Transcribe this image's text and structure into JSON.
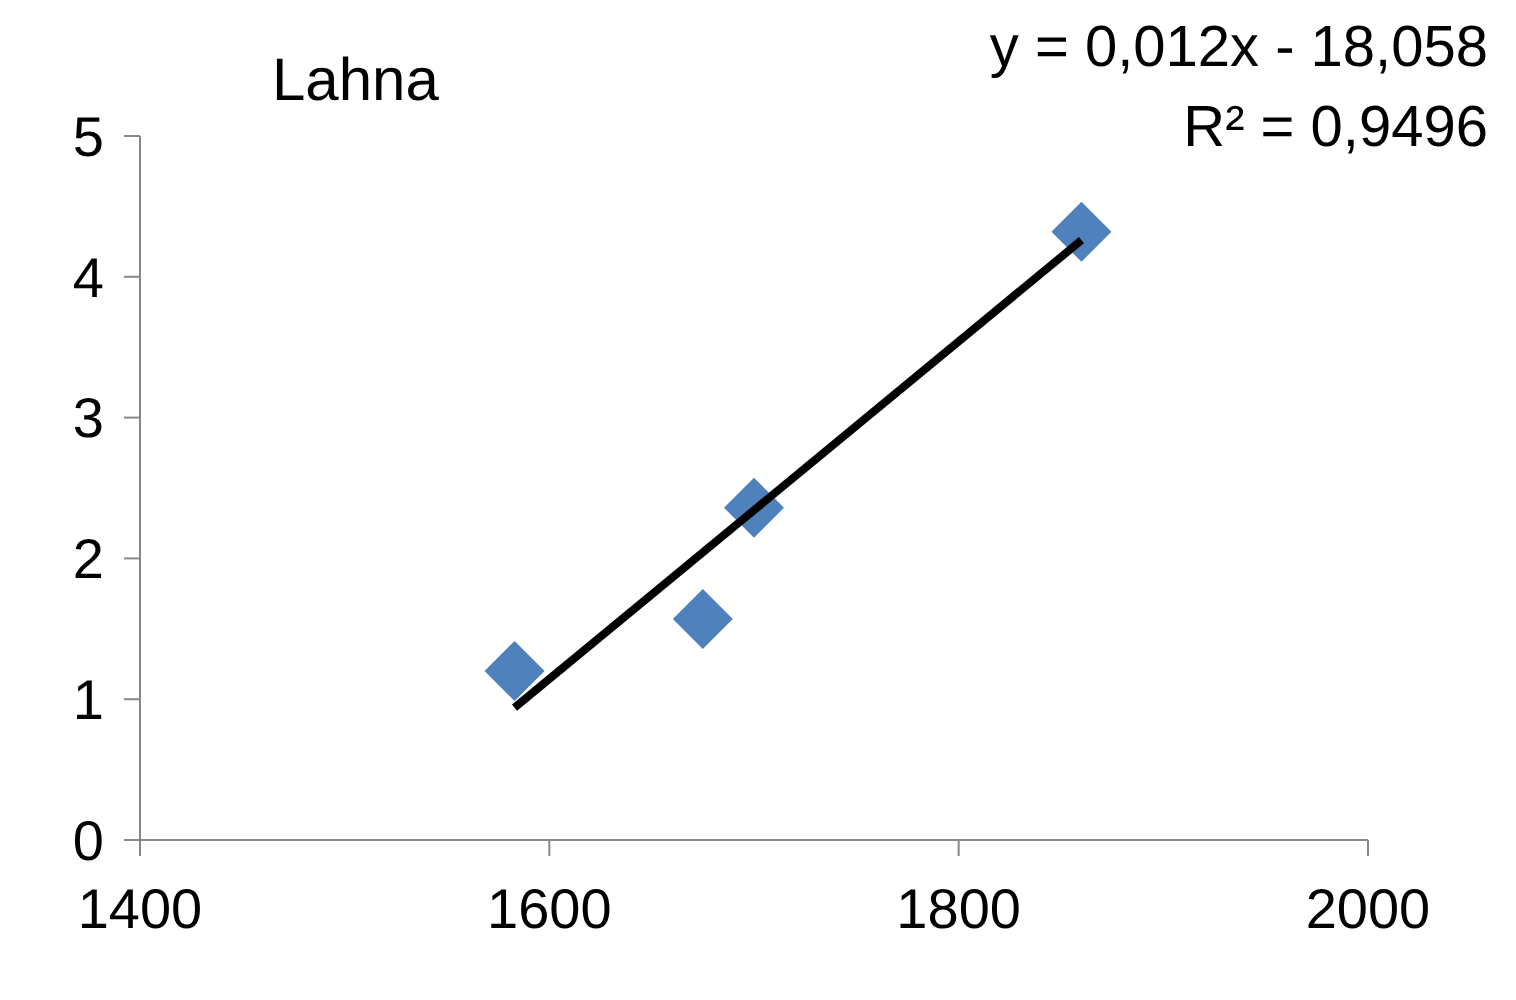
{
  "chart_data": {
    "type": "scatter",
    "title": "Lahna",
    "annotations": [
      "y = 0,012x - 18,058",
      "R² = 0,9496"
    ],
    "marker": "diamond",
    "grid": false,
    "series": [
      {
        "color": "#4f81bd",
        "x": [
          1583,
          1675,
          1700,
          1860
        ],
        "values": [
          1.2,
          1.57,
          2.36,
          4.32
        ]
      },
      {
        "type": "line",
        "color": "#000000",
        "marker": "none",
        "x": [
          1583,
          1860
        ],
        "values": [
          0.94,
          4.26
        ]
      }
    ],
    "xlim": [
      1400,
      2000
    ],
    "xticks": [
      1400,
      1600,
      1800,
      2000
    ],
    "ylim": [
      0,
      5
    ],
    "yticks": [
      0,
      1,
      2,
      3,
      4,
      5
    ]
  }
}
